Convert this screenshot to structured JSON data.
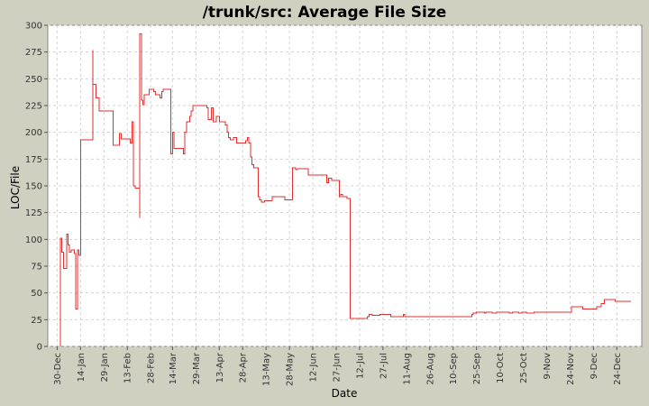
{
  "chart_data": {
    "type": "line",
    "title": "/trunk/src: Average File Size",
    "xlabel": "Date",
    "ylabel": "LOC/File",
    "ylim": [
      0,
      300
    ],
    "yticks": [
      0,
      25,
      50,
      75,
      100,
      125,
      150,
      175,
      200,
      225,
      250,
      275,
      300
    ],
    "xlim": [
      "2004-12-24",
      "2006-01-09"
    ],
    "xticks": [
      {
        "date": "2004-12-30",
        "label": "30-Dec"
      },
      {
        "date": "2005-01-14",
        "label": "14-Jan"
      },
      {
        "date": "2005-01-29",
        "label": "29-Jan"
      },
      {
        "date": "2005-02-13",
        "label": "13-Feb"
      },
      {
        "date": "2005-02-28",
        "label": "28-Feb"
      },
      {
        "date": "2005-03-14",
        "label": "14-Mar"
      },
      {
        "date": "2005-03-29",
        "label": "29-Mar"
      },
      {
        "date": "2005-04-13",
        "label": "13-Apr"
      },
      {
        "date": "2005-04-28",
        "label": "28-Apr"
      },
      {
        "date": "2005-05-13",
        "label": "13-May"
      },
      {
        "date": "2005-05-28",
        "label": "28-May"
      },
      {
        "date": "2005-06-12",
        "label": "12-Jun"
      },
      {
        "date": "2005-06-27",
        "label": "27-Jun"
      },
      {
        "date": "2005-07-12",
        "label": "12-Jul"
      },
      {
        "date": "2005-07-27",
        "label": "27-Jul"
      },
      {
        "date": "2005-08-11",
        "label": "11-Aug"
      },
      {
        "date": "2005-08-26",
        "label": "26-Aug"
      },
      {
        "date": "2005-09-10",
        "label": "10-Sep"
      },
      {
        "date": "2005-09-25",
        "label": "25-Sep"
      },
      {
        "date": "2005-10-10",
        "label": "10-Oct"
      },
      {
        "date": "2005-10-25",
        "label": "25-Oct"
      },
      {
        "date": "2005-11-09",
        "label": "9-Nov"
      },
      {
        "date": "2005-11-24",
        "label": "24-Nov"
      },
      {
        "date": "2005-12-09",
        "label": "9-Dec"
      },
      {
        "date": "2005-12-24",
        "label": "24-Dec"
      }
    ],
    "grid": true,
    "series": [
      {
        "color": "#e03030",
        "step": true,
        "points": [
          [
            "2005-01-01",
            0
          ],
          [
            "2005-01-01",
            101
          ],
          [
            "2005-01-02",
            88
          ],
          [
            "2005-01-03",
            73
          ],
          [
            "2005-01-05",
            105
          ],
          [
            "2005-01-06",
            95
          ],
          [
            "2005-01-07",
            88
          ],
          [
            "2005-01-08",
            90
          ],
          [
            "2005-01-10",
            87
          ],
          [
            "2005-01-11",
            35
          ],
          [
            "2005-01-12",
            90
          ],
          [
            "2005-01-13",
            85
          ],
          [
            "2005-01-14",
            193
          ],
          [
            "2005-01-22",
            193
          ],
          [
            "2005-01-22",
            277
          ],
          [
            "2005-01-22",
            245
          ],
          [
            "2005-01-24",
            232
          ],
          [
            "2005-01-26",
            220
          ],
          [
            "2005-02-04",
            188
          ],
          [
            "2005-02-08",
            199
          ],
          [
            "2005-02-09",
            194
          ],
          [
            "2005-02-15",
            190
          ],
          [
            "2005-02-16",
            210
          ],
          [
            "2005-02-17",
            150
          ],
          [
            "2005-02-18",
            148
          ],
          [
            "2005-02-21",
            120
          ],
          [
            "2005-02-21",
            292
          ],
          [
            "2005-02-22",
            283
          ],
          [
            "2005-02-22",
            230
          ],
          [
            "2005-02-23",
            226
          ],
          [
            "2005-02-24",
            235
          ],
          [
            "2005-02-27",
            240
          ],
          [
            "2005-03-02",
            238
          ],
          [
            "2005-03-03",
            235
          ],
          [
            "2005-03-06",
            232
          ],
          [
            "2005-03-07",
            238
          ],
          [
            "2005-03-08",
            240
          ],
          [
            "2005-03-13",
            180
          ],
          [
            "2005-03-14",
            200
          ],
          [
            "2005-03-15",
            185
          ],
          [
            "2005-03-21",
            180
          ],
          [
            "2005-03-22",
            200
          ],
          [
            "2005-03-23",
            210
          ],
          [
            "2005-03-25",
            215
          ],
          [
            "2005-03-26",
            220
          ],
          [
            "2005-03-27",
            225
          ],
          [
            "2005-04-05",
            223
          ],
          [
            "2005-04-06",
            212
          ],
          [
            "2005-04-08",
            223
          ],
          [
            "2005-04-09",
            210
          ],
          [
            "2005-04-11",
            215
          ],
          [
            "2005-04-13",
            210
          ],
          [
            "2005-04-17",
            207
          ],
          [
            "2005-04-18",
            200
          ],
          [
            "2005-04-19",
            195
          ],
          [
            "2005-04-20",
            193
          ],
          [
            "2005-04-22",
            195
          ],
          [
            "2005-04-24",
            190
          ],
          [
            "2005-04-30",
            192
          ],
          [
            "2005-05-01",
            195
          ],
          [
            "2005-05-02",
            190
          ],
          [
            "2005-05-03",
            177
          ],
          [
            "2005-05-04",
            170
          ],
          [
            "2005-05-05",
            167
          ],
          [
            "2005-05-08",
            140
          ],
          [
            "2005-05-09",
            137
          ],
          [
            "2005-05-10",
            135
          ],
          [
            "2005-05-12",
            136
          ],
          [
            "2005-05-17",
            140
          ],
          [
            "2005-05-25",
            137
          ],
          [
            "2005-05-30",
            167
          ],
          [
            "2005-06-01",
            165
          ],
          [
            "2005-06-02",
            166
          ],
          [
            "2005-06-09",
            160
          ],
          [
            "2005-06-21",
            153
          ],
          [
            "2005-06-22",
            157
          ],
          [
            "2005-06-24",
            155
          ],
          [
            "2005-06-29",
            140
          ],
          [
            "2005-06-30",
            142
          ],
          [
            "2005-07-01",
            140
          ],
          [
            "2005-07-04",
            138
          ],
          [
            "2005-07-06",
            26
          ],
          [
            "2005-07-17",
            28
          ],
          [
            "2005-07-18",
            30
          ],
          [
            "2005-07-20",
            29
          ],
          [
            "2005-07-25",
            30
          ],
          [
            "2005-08-01",
            28
          ],
          [
            "2005-08-09",
            30
          ],
          [
            "2005-08-10",
            28
          ],
          [
            "2005-09-22",
            28
          ],
          [
            "2005-09-22",
            30
          ],
          [
            "2005-09-23",
            31
          ],
          [
            "2005-09-25",
            32
          ],
          [
            "2005-09-30",
            31
          ],
          [
            "2005-10-01",
            32
          ],
          [
            "2005-10-05",
            31
          ],
          [
            "2005-10-08",
            32
          ],
          [
            "2005-10-16",
            31
          ],
          [
            "2005-10-18",
            32
          ],
          [
            "2005-10-22",
            31
          ],
          [
            "2005-10-24",
            32
          ],
          [
            "2005-10-27",
            31
          ],
          [
            "2005-11-01",
            32
          ],
          [
            "2005-11-24",
            32
          ],
          [
            "2005-11-25",
            37
          ],
          [
            "2005-12-02",
            35
          ],
          [
            "2005-12-11",
            37
          ],
          [
            "2005-12-14",
            40
          ],
          [
            "2005-12-16",
            44
          ],
          [
            "2005-12-23",
            42
          ],
          [
            "2006-01-02",
            42
          ]
        ]
      }
    ]
  }
}
